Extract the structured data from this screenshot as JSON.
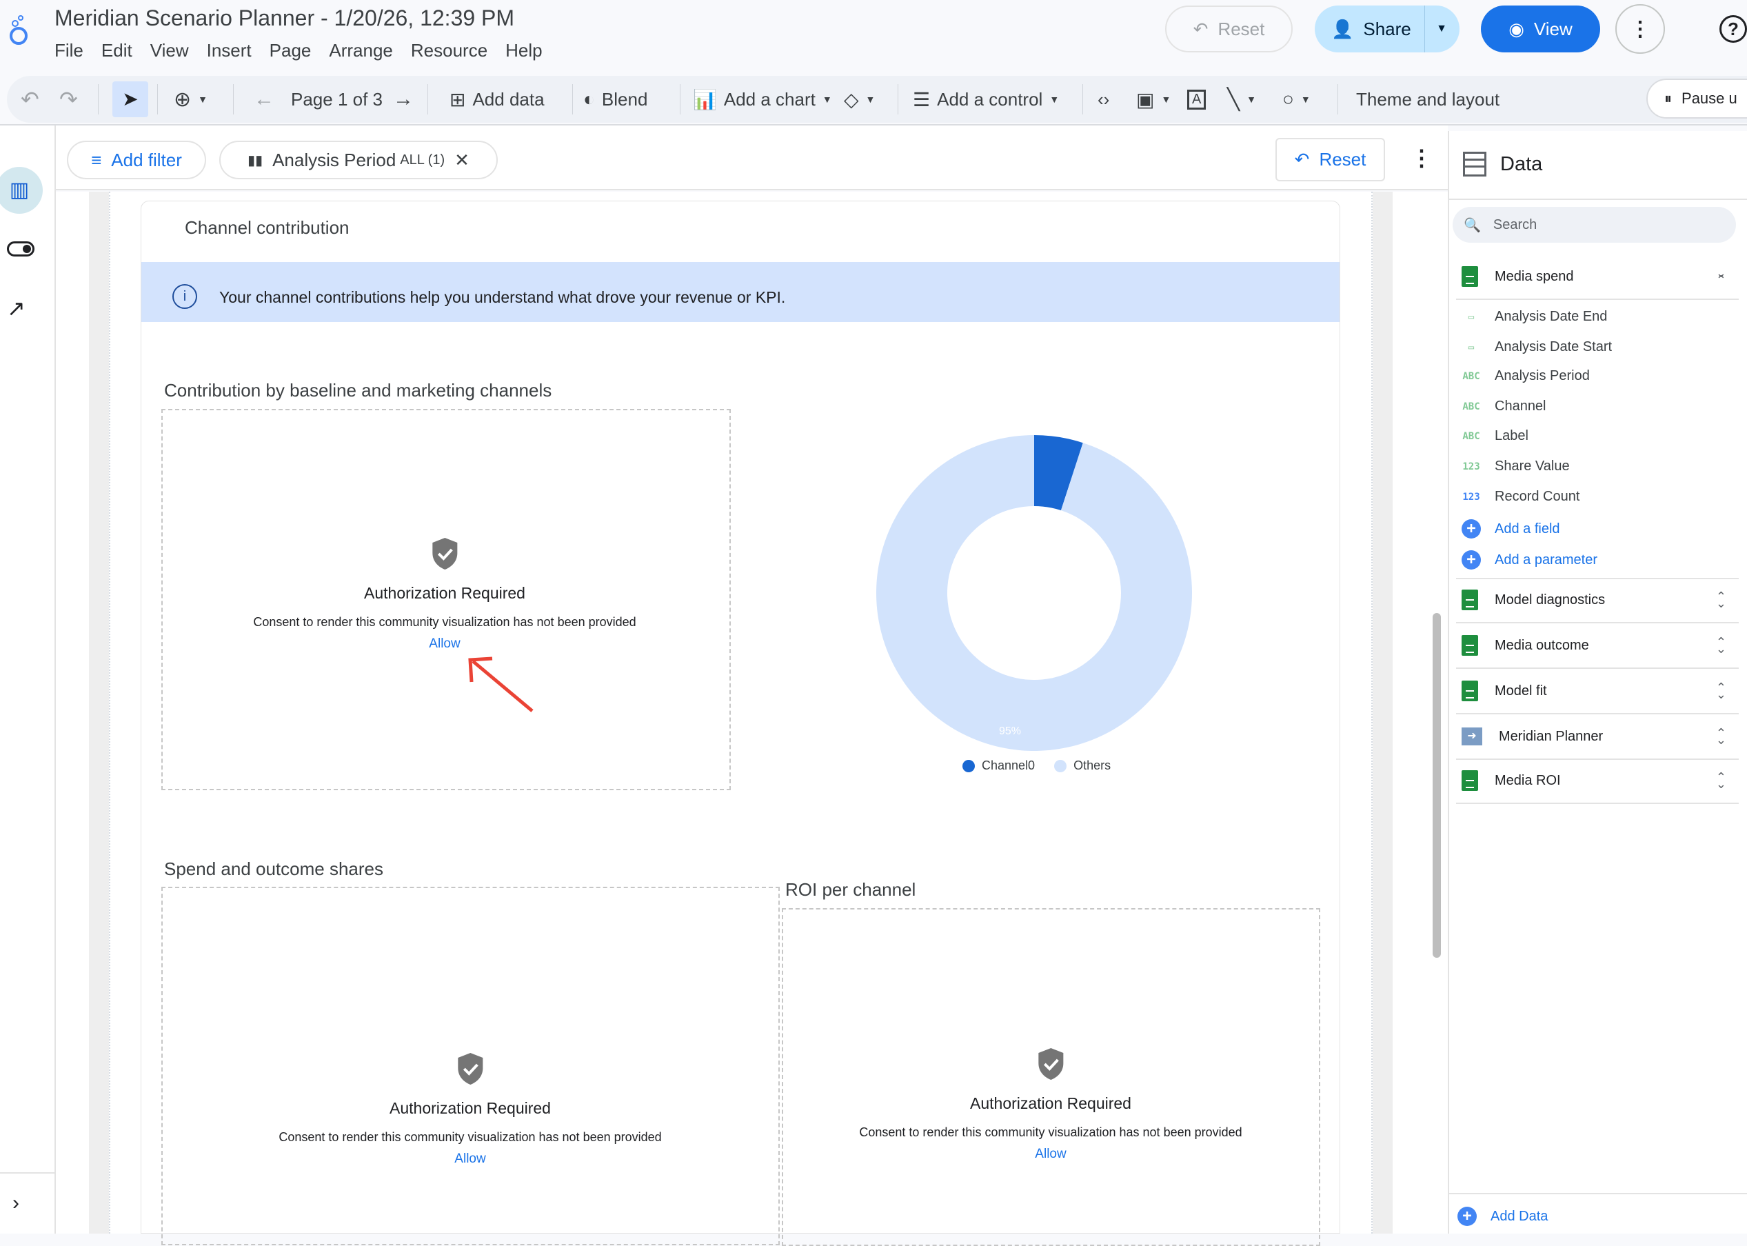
{
  "header": {
    "title": "Meridian Scenario Planner - 1/20/26, 12:39 PM",
    "menu": [
      "File",
      "Edit",
      "View",
      "Insert",
      "Page",
      "Arrange",
      "Resource",
      "Help"
    ],
    "reset": "Reset",
    "share": "Share",
    "view": "View"
  },
  "toolbar": {
    "page": "Page 1 of 3",
    "add_data": "Add data",
    "blend": "Blend",
    "add_chart": "Add a chart",
    "add_control": "Add a control",
    "theme": "Theme and layout",
    "pause": "Pause u"
  },
  "filterbar": {
    "add_filter": "Add filter",
    "chip_label": "Analysis Period",
    "chip_value": "ALL (1)",
    "reset": "Reset"
  },
  "report": {
    "card_title": "Channel contribution",
    "info": "Your channel contributions help you understand what drove your revenue or KPI.",
    "section1": "Contribution by baseline and marketing channels",
    "section2": "Spend and outcome shares",
    "section3": "ROI per channel",
    "auth": {
      "title": "Authorization Required",
      "consent": "Consent to render this community visualization has not been provided",
      "allow": "Allow"
    }
  },
  "chart_data": {
    "type": "pie",
    "donut": true,
    "categories": [
      "Channel0",
      "Others"
    ],
    "values": [
      5,
      95
    ],
    "labels": [
      "5%",
      "95%"
    ],
    "colors": [
      "#1967d2",
      "#d2e3fc"
    ],
    "legend": "bottom"
  },
  "panel": {
    "title": "Data",
    "search_placeholder": "Search",
    "expanded_source": "Media spend",
    "fields": [
      {
        "type": "date",
        "name": "Analysis Date End"
      },
      {
        "type": "date",
        "name": "Analysis Date Start"
      },
      {
        "type": "ABC",
        "name": "Analysis Period"
      },
      {
        "type": "ABC",
        "name": "Channel"
      },
      {
        "type": "ABC",
        "name": "Label"
      },
      {
        "type": "123",
        "name": "Share Value"
      },
      {
        "type": "123",
        "name": "Record Count"
      }
    ],
    "add_field": "Add a field",
    "add_parameter": "Add a parameter",
    "sources": [
      "Model diagnostics",
      "Media outcome",
      "Model fit",
      "Meridian Planner",
      "Media ROI"
    ],
    "add_data": "Add Data"
  }
}
